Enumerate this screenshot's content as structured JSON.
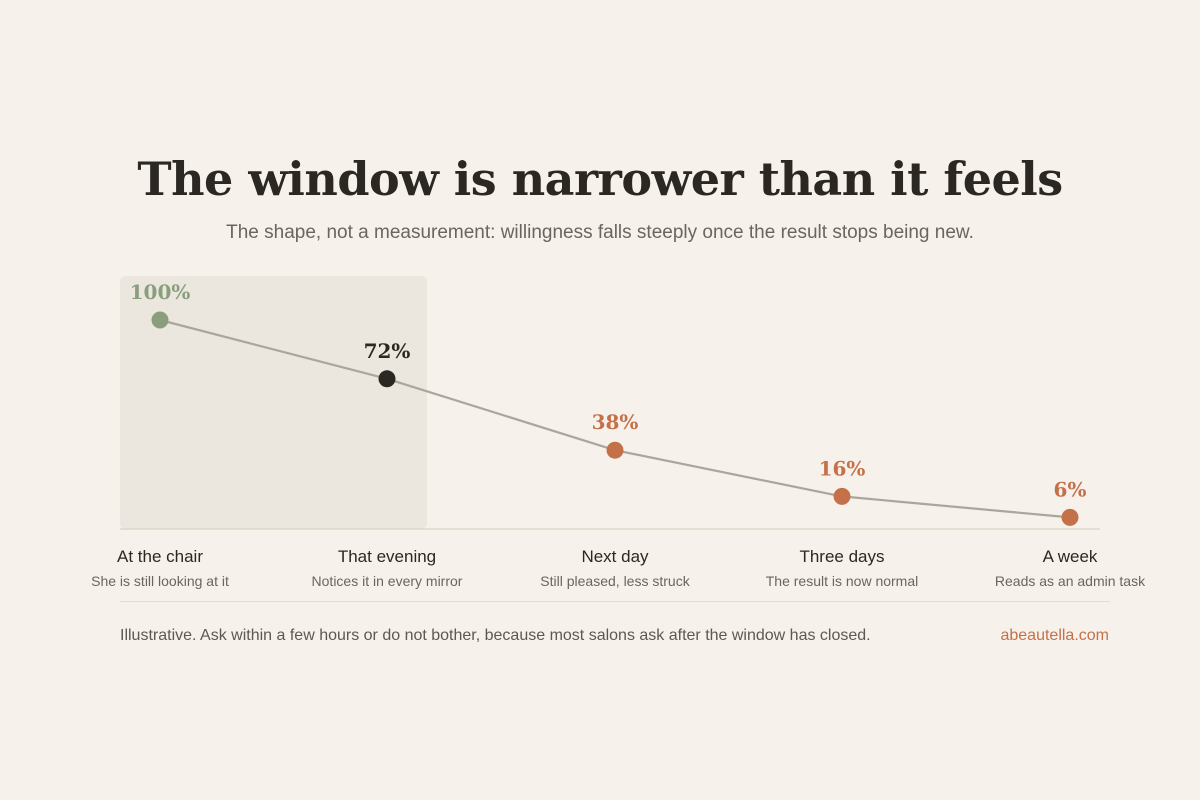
{
  "header": {
    "title": "The window is narrower than it feels",
    "subtitle": "The shape, not a measurement: willingness falls steeply once the result stops being new."
  },
  "footer": {
    "note": "Illustrative. Ask within a few hours or do not bother, because most salons ask after the window has closed.",
    "credit": "abeautella.com"
  },
  "colors": {
    "background": "#f6f1ea",
    "highlight_band": "#ebe7de",
    "line": "#aaa59d",
    "first_point": "#8a9e7e",
    "second_point": "#2b2722",
    "later_points": "#c4714a"
  },
  "chart_data": {
    "type": "line",
    "categories": [
      "At the chair",
      "That evening",
      "Next day",
      "Three days",
      "A week"
    ],
    "category_notes": [
      "She is still looking at it",
      "Notices it in every mirror",
      "Still pleased, less struck",
      "The result is now normal",
      "Reads as an admin task"
    ],
    "values": [
      100,
      72,
      38,
      16,
      6
    ],
    "value_labels": [
      "100%",
      "72%",
      "38%",
      "16%",
      "6%"
    ],
    "point_colors": [
      "#8a9e7e",
      "#2b2722",
      "#c4714a",
      "#c4714a",
      "#c4714a"
    ],
    "ylim": [
      0,
      100
    ],
    "highlighted_range": [
      "At the chair",
      "That evening"
    ],
    "xlabel": "",
    "ylabel": "",
    "grid": false,
    "legend": false
  }
}
